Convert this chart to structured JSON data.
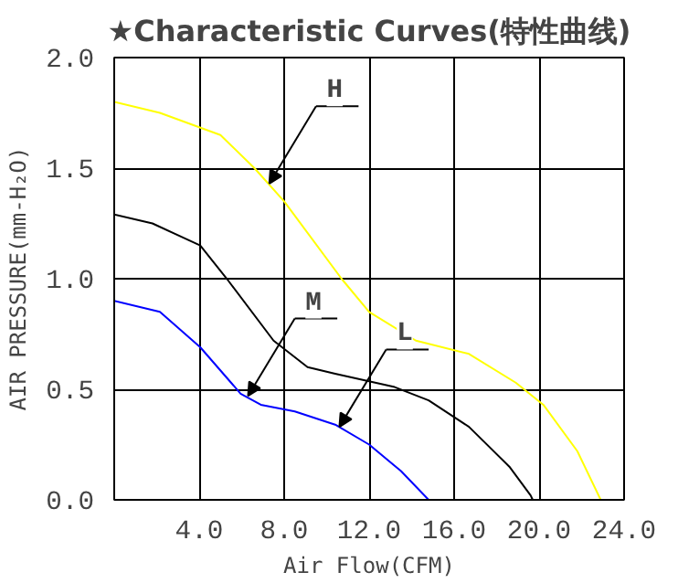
{
  "chart_data": {
    "type": "line",
    "title": "★Characteristic Curves(特性曲线)",
    "xlabel": "Air Flow(CFM)",
    "ylabel": "AIR PRESSURE(mm-H₂O)",
    "series": [
      {
        "color": "#ffff00",
        "x": [
          0,
          2.15,
          5.0,
          6.6,
          8.0,
          10.7,
          12.0,
          14.2,
          16.7,
          18.9,
          20.2,
          21.8,
          22.9
        ],
        "values": [
          1.8,
          1.75,
          1.65,
          1.5,
          1.35,
          1.0,
          0.85,
          0.72,
          0.66,
          0.53,
          0.43,
          0.22,
          0
        ]
      },
      {
        "color": "#000000",
        "x": [
          0,
          1.8,
          4.05,
          5.3,
          7.5,
          9.1,
          10.4,
          13.2,
          14.8,
          16.7,
          18.6,
          19.6,
          19.7
        ],
        "values": [
          1.29,
          1.25,
          1.15,
          1.0,
          0.72,
          0.6,
          0.57,
          0.51,
          0.45,
          0.33,
          0.15,
          0.02,
          0
        ]
      },
      {
        "color": "#0000ff",
        "x": [
          0,
          2.15,
          4.05,
          5.95,
          6.9,
          8.5,
          10.4,
          12.0,
          13.5,
          14.8
        ],
        "values": [
          0.9,
          0.85,
          0.69,
          0.48,
          0.43,
          0.4,
          0.34,
          0.25,
          0.13,
          0
        ]
      }
    ],
    "annotations": [
      {
        "text": "H",
        "x": 7.3,
        "y": 1.43
      },
      {
        "text": "M",
        "x": 6.3,
        "y": 0.47
      },
      {
        "text": "L",
        "x": 10.6,
        "y": 0.33
      }
    ],
    "xlim": [
      0,
      24
    ],
    "xticks": [
      {
        "value": 4,
        "label": "4.0"
      },
      {
        "value": 8,
        "label": "8.0"
      },
      {
        "value": 12,
        "label": "12.0"
      },
      {
        "value": 16,
        "label": "16.0"
      },
      {
        "value": 20,
        "label": "20.0"
      },
      {
        "value": 24,
        "label": "24.0"
      }
    ],
    "ylim": [
      0,
      2
    ],
    "yticks": [
      {
        "value": 0,
        "label": "0.0"
      },
      {
        "value": 0.5,
        "label": "0.5"
      },
      {
        "value": 1,
        "label": "1.0"
      },
      {
        "value": 1.5,
        "label": "1.5"
      },
      {
        "value": 2,
        "label": "2.0"
      }
    ],
    "grid": true
  }
}
